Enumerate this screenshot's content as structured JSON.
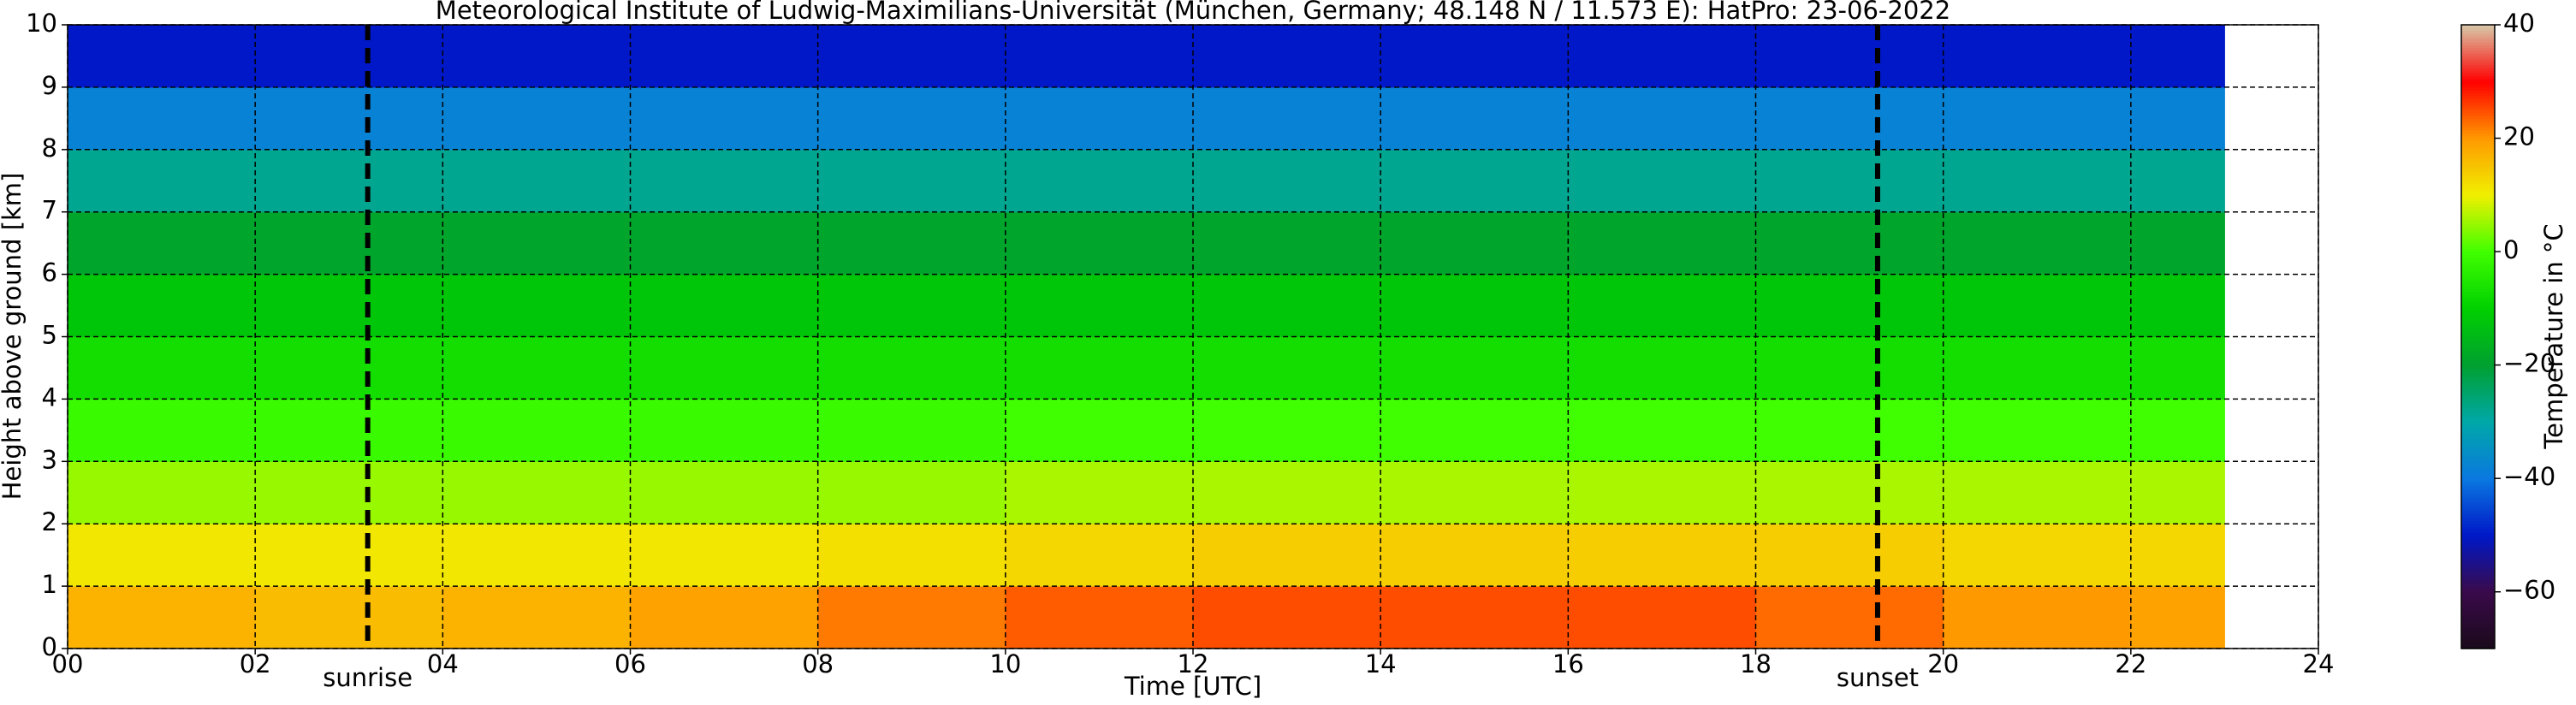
{
  "chart_data": {
    "type": "heatmap",
    "title": "Meteorological Institute of Ludwig-Maximilians-Universität (München, Germany; 48.148 N / 11.573 E):    HatPro: 23-06-2022",
    "x_label": "Time [UTC]",
    "y_label": "Height above ground [km]",
    "colorbar_label": "Temperature in $^\\circ$C",
    "x_bins": [
      0,
      2,
      4,
      6,
      8,
      10,
      12,
      14,
      16,
      18,
      20,
      22,
      23
    ],
    "y_bins": [
      0,
      1,
      2,
      3,
      4,
      5,
      6,
      7,
      8,
      9,
      10
    ],
    "values": [
      [
        17,
        16,
        17,
        19,
        22,
        24,
        25,
        25,
        25,
        23,
        20,
        19
      ],
      [
        11,
        11,
        11,
        11,
        12,
        13,
        14,
        14,
        14,
        14,
        13,
        13
      ],
      [
        5,
        5,
        5,
        5,
        5,
        6,
        6,
        6,
        6,
        6,
        6,
        6
      ],
      [
        -1,
        -1,
        -1,
        -1,
        -1,
        0,
        0,
        0,
        0,
        0,
        0,
        0
      ],
      [
        -7,
        -7,
        -7,
        -7,
        -7,
        -7,
        -7,
        -7,
        -7,
        -7,
        -7,
        -7
      ],
      [
        -12,
        -12,
        -12,
        -12,
        -12,
        -12,
        -12,
        -12,
        -12,
        -12,
        -12,
        -12
      ],
      [
        -19,
        -19,
        -19,
        -19,
        -19,
        -19,
        -19,
        -19,
        -19,
        -19,
        -19,
        -19
      ],
      [
        -28,
        -28,
        -28,
        -28,
        -28,
        -28,
        -28,
        -28,
        -28,
        -28,
        -28,
        -28
      ],
      [
        -38,
        -38,
        -38,
        -38,
        -38,
        -38,
        -38,
        -38,
        -38,
        -38,
        -38,
        -38
      ],
      [
        -50,
        -50,
        -50,
        -50,
        -50,
        -50,
        -50,
        -50,
        -50,
        -50,
        -50,
        -50
      ]
    ],
    "colors": [
      "#1a0a1a",
      "#3a0a4a",
      "#0018c8",
      "#0a78e0",
      "#00a8a8",
      "#00a030",
      "#00d000",
      "#40ff00",
      "#f0f000",
      "#ff9900",
      "#ff0000",
      "#d8c8a8"
    ],
    "clim": [
      -70,
      40
    ],
    "cticks": [
      {
        "value": -60,
        "label": "−60"
      },
      {
        "value": -40,
        "label": "−40"
      },
      {
        "value": -20,
        "label": "−20"
      },
      0,
      20,
      40
    ],
    "xlim": [
      0,
      24
    ],
    "xticks": [
      {
        "value": 0,
        "label": "00"
      },
      {
        "value": 2,
        "label": "02"
      },
      {
        "value": 4,
        "label": "04"
      },
      {
        "value": 6,
        "label": "06"
      },
      {
        "value": 8,
        "label": "08"
      },
      10,
      12,
      14,
      16,
      18,
      20,
      22,
      24
    ],
    "ylim": [
      0,
      10
    ],
    "yticks": [
      0,
      1,
      2,
      3,
      4,
      5,
      6,
      7,
      8,
      9,
      10
    ],
    "grid": true,
    "events": [
      {
        "label": "sunrise",
        "x": 3.2
      },
      {
        "label": "sunset",
        "x": 19.3
      }
    ]
  }
}
